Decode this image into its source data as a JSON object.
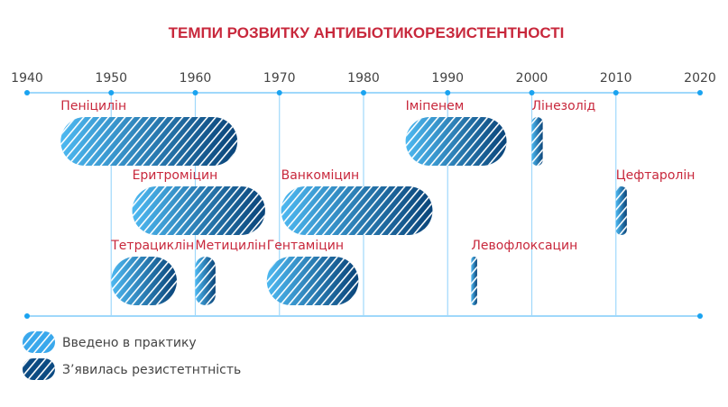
{
  "chart_data": {
    "type": "timeline-bar",
    "title": "ТЕМПИ РОЗВИТКУ АНТИБІОТИКОРЕЗИСТЕНТНОСТІ",
    "xlim": [
      1940,
      2020
    ],
    "ticks": [
      "1940",
      "1950",
      "1960",
      "1970",
      "1980",
      "1990",
      "2000",
      "2010",
      "2020"
    ],
    "bars": [
      {
        "name": "Пеніцилін",
        "row": 0,
        "start": 1944,
        "end": 1965
      },
      {
        "name": "Іміпенем",
        "row": 0,
        "start": 1985,
        "end": 1997
      },
      {
        "name": "Лінезолід",
        "row": 0,
        "start": 2000,
        "end": 2001.3
      },
      {
        "name": "Еритроміцин",
        "row": 1,
        "start": 1952.5,
        "end": 1968.3
      },
      {
        "name": "Ванкоміцин",
        "row": 1,
        "start": 1970.2,
        "end": 1988.2
      },
      {
        "name": "Цефтаролін",
        "row": 1,
        "start": 2010,
        "end": 2011.3
      },
      {
        "name": "Тетрациклін",
        "row": 2,
        "start": 1950,
        "end": 1957.8
      },
      {
        "name": "Метицилін",
        "row": 2,
        "start": 1960,
        "end": 1962.4
      },
      {
        "name": "Гентаміцин",
        "row": 2,
        "start": 1968.5,
        "end": 1979.4
      },
      {
        "name": "Левофлоксацин",
        "row": 2,
        "start": 1992.8,
        "end": 1993.5
      }
    ],
    "legend": [
      {
        "label": "Введено в практику",
        "color": "#3aa8ec"
      },
      {
        "label": "З’явилась   резистетнтність",
        "color": "#0b4a82"
      }
    ]
  }
}
